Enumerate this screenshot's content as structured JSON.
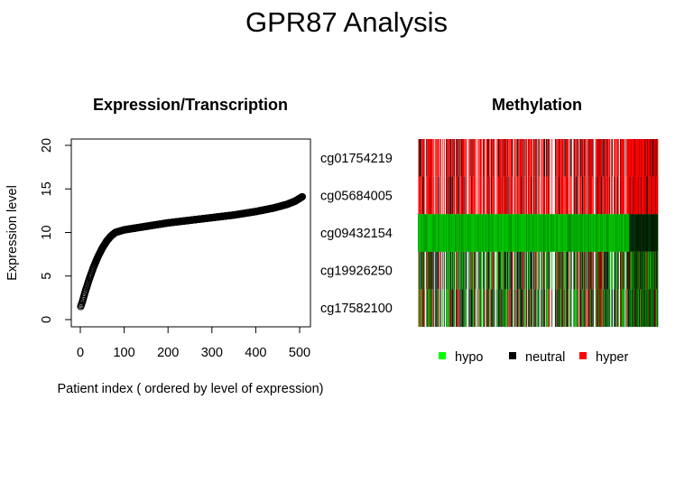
{
  "title": "GPR87 Analysis",
  "chart_data": [
    {
      "type": "scatter",
      "title": "Expression/Transcription",
      "xlabel": "Patient index ( ordered by level of expression)",
      "ylabel": "Expression level",
      "xlim": [
        0,
        510
      ],
      "ylim": [
        0,
        20
      ],
      "xticks": [
        0,
        100,
        200,
        300,
        400,
        500
      ],
      "yticks": [
        0,
        5,
        10,
        15,
        20
      ],
      "marker": "open-circle",
      "n_points": 506,
      "curve_anchors": [
        {
          "x": 1,
          "y": 1.5
        },
        {
          "x": 5,
          "y": 2.1
        },
        {
          "x": 10,
          "y": 3.0
        },
        {
          "x": 20,
          "y": 4.6
        },
        {
          "x": 30,
          "y": 6.0
        },
        {
          "x": 40,
          "y": 7.2
        },
        {
          "x": 50,
          "y": 8.2
        },
        {
          "x": 60,
          "y": 9.0
        },
        {
          "x": 70,
          "y": 9.6
        },
        {
          "x": 80,
          "y": 10.0
        },
        {
          "x": 100,
          "y": 10.3
        },
        {
          "x": 150,
          "y": 10.7
        },
        {
          "x": 200,
          "y": 11.1
        },
        {
          "x": 250,
          "y": 11.4
        },
        {
          "x": 300,
          "y": 11.7
        },
        {
          "x": 350,
          "y": 12.0
        },
        {
          "x": 400,
          "y": 12.4
        },
        {
          "x": 440,
          "y": 12.8
        },
        {
          "x": 470,
          "y": 13.2
        },
        {
          "x": 490,
          "y": 13.6
        },
        {
          "x": 506,
          "y": 14.1
        }
      ]
    },
    {
      "type": "heatmap",
      "title": "Methylation",
      "rows": [
        "cg01754219",
        "cg05684005",
        "cg09432154",
        "cg19926250",
        "cg17582100"
      ],
      "row_tendency": [
        "hyper",
        "hyper",
        "hypo",
        "mixed",
        "mixed"
      ],
      "n_columns": 506,
      "legend": [
        {
          "label": "hypo",
          "color": "#00ff00"
        },
        {
          "label": "neutral",
          "color": "#000000"
        },
        {
          "label": "hyper",
          "color": "#ff0000"
        }
      ]
    }
  ]
}
